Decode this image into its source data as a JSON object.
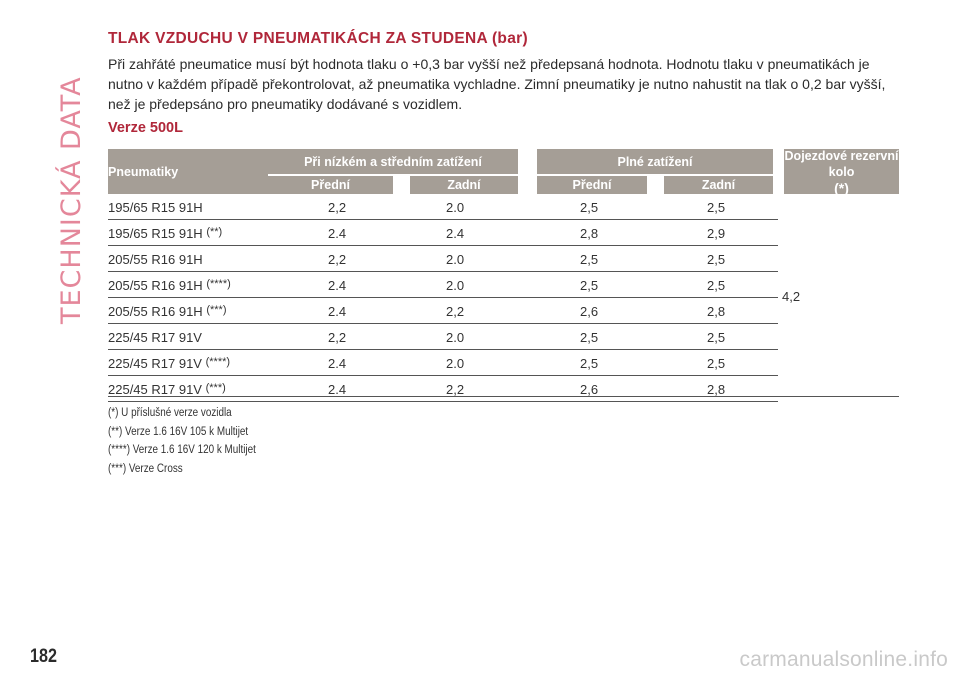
{
  "side_title": "TECHNICKÁ DATA",
  "heading": "TLAK VZDUCHU V PNEUMATIKÁCH ZA STUDENA (bar)",
  "intro": "Při zahřáté pneumatice musí být hodnota tlaku o +0,3 bar vyšší než předepsaná hodnota. Hodnotu tlaku v pneumatikách je nutno v každém případě překontrolovat, až pneumatika vychladne. Zimní pneumatiky je nutno nahustit na tlak o 0,2 bar vyšší, než je předepsáno pro pneumatiky dodávané s vozidlem.",
  "subheading": "Verze 500L",
  "table": {
    "col_tyres": "Pneumatiky",
    "group_low": "Při nízkém a středním zatížení",
    "group_full": "Plné zatížení",
    "front": "Přední",
    "rear": "Zadní",
    "spare_label": "Dojezdové rezervní kolo",
    "spare_mark": "(*)",
    "spare_value": "4,2",
    "rows": [
      {
        "name": "195/65 R15 91H",
        "mark": "",
        "low_front": "2,2",
        "low_rear": "2.0",
        "full_front": "2,5",
        "full_rear": "2,5"
      },
      {
        "name": "195/65 R15 91H",
        "mark": "(**)",
        "low_front": "2.4",
        "low_rear": "2.4",
        "full_front": "2,8",
        "full_rear": "2,9"
      },
      {
        "name": "205/55 R16 91H",
        "mark": "",
        "low_front": "2,2",
        "low_rear": "2.0",
        "full_front": "2,5",
        "full_rear": "2,5"
      },
      {
        "name": "205/55 R16 91H",
        "mark": "(****)",
        "low_front": "2.4",
        "low_rear": "2.0",
        "full_front": "2,5",
        "full_rear": "2,5"
      },
      {
        "name": "205/55 R16 91H",
        "mark": "(***)",
        "low_front": "2.4",
        "low_rear": "2,2",
        "full_front": "2,6",
        "full_rear": "2,8"
      },
      {
        "name": "225/45 R17 91V",
        "mark": "",
        "low_front": "2,2",
        "low_rear": "2.0",
        "full_front": "2,5",
        "full_rear": "2,5"
      },
      {
        "name": "225/45 R17 91V",
        "mark": "(****)",
        "low_front": "2.4",
        "low_rear": "2.0",
        "full_front": "2,5",
        "full_rear": "2,5"
      },
      {
        "name": "225/45 R17 91V",
        "mark": "(***)",
        "low_front": "2.4",
        "low_rear": "2,2",
        "full_front": "2,6",
        "full_rear": "2,8"
      }
    ]
  },
  "notes": [
    "(*) U příslušné verze vozidla",
    "(**) Verze 1.6 16V 105 k Multijet",
    "(****) Verze 1.6 16V 120 k Multijet",
    "(***) Verze Cross"
  ],
  "page_number": "182",
  "watermark": "carmanualsonline.info"
}
